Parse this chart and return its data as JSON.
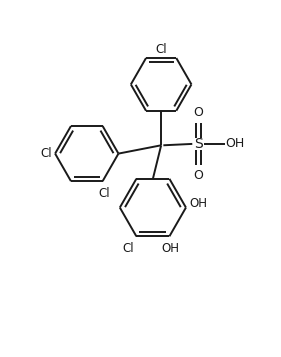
{
  "bg_color": "#ffffff",
  "line_color": "#1a1a1a",
  "line_width": 1.4,
  "figsize": [
    2.81,
    3.57
  ],
  "dpi": 100,
  "xlim": [
    0,
    10
  ],
  "ylim": [
    0,
    12.7
  ]
}
